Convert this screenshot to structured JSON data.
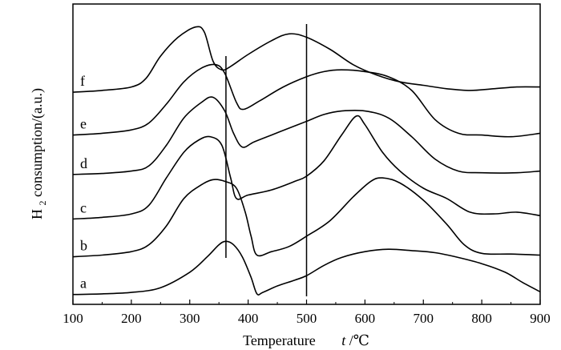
{
  "chart_data": {
    "type": "line",
    "xlabel_text": "Temperature",
    "xlabel_var": "t",
    "xlabel_unit": "/℃",
    "ylabel_main": "H",
    "ylabel_sub": "2",
    "ylabel_rest": " consumption/(a.u.)",
    "xlim": [
      100,
      900
    ],
    "x_ticks": [
      100,
      200,
      300,
      400,
      500,
      600,
      700,
      800,
      900
    ],
    "reference_lines": [
      362,
      500
    ],
    "series": [
      {
        "name": "a",
        "points": [
          [
            100,
            1.0
          ],
          [
            150,
            1.2
          ],
          [
            200,
            1.6
          ],
          [
            250,
            3.0
          ],
          [
            300,
            7.5
          ],
          [
            330,
            12.0
          ],
          [
            350,
            15.5
          ],
          [
            362,
            16.5
          ],
          [
            375,
            15.5
          ],
          [
            390,
            12.0
          ],
          [
            405,
            6.0
          ],
          [
            415,
            1.2
          ],
          [
            425,
            1.6
          ],
          [
            450,
            3.5
          ],
          [
            480,
            5.2
          ],
          [
            500,
            6.5
          ],
          [
            530,
            9.5
          ],
          [
            560,
            11.8
          ],
          [
            600,
            13.5
          ],
          [
            640,
            14.2
          ],
          [
            680,
            13.8
          ],
          [
            720,
            13.2
          ],
          [
            760,
            11.8
          ],
          [
            800,
            10.0
          ],
          [
            840,
            7.5
          ],
          [
            870,
            4.5
          ],
          [
            900,
            1.8
          ]
        ]
      },
      {
        "name": "b",
        "points": [
          [
            100,
            12.0
          ],
          [
            150,
            12.5
          ],
          [
            200,
            13.5
          ],
          [
            230,
            15.5
          ],
          [
            260,
            21.0
          ],
          [
            290,
            29.0
          ],
          [
            320,
            33.0
          ],
          [
            340,
            34.5
          ],
          [
            360,
            34.0
          ],
          [
            380,
            32.0
          ],
          [
            395,
            25.0
          ],
          [
            405,
            18.0
          ],
          [
            415,
            12.5
          ],
          [
            440,
            13.5
          ],
          [
            470,
            15.0
          ],
          [
            500,
            18.0
          ],
          [
            540,
            22.5
          ],
          [
            580,
            29.5
          ],
          [
            610,
            34.0
          ],
          [
            630,
            35.0
          ],
          [
            660,
            33.5
          ],
          [
            700,
            28.5
          ],
          [
            740,
            21.5
          ],
          [
            770,
            15.5
          ],
          [
            800,
            13.0
          ],
          [
            850,
            12.8
          ],
          [
            900,
            12.5
          ]
        ]
      },
      {
        "name": "c",
        "points": [
          [
            100,
            23.0
          ],
          [
            150,
            23.5
          ],
          [
            200,
            24.5
          ],
          [
            230,
            27.0
          ],
          [
            260,
            35.0
          ],
          [
            290,
            42.5
          ],
          [
            315,
            46.0
          ],
          [
            335,
            47.0
          ],
          [
            355,
            44.5
          ],
          [
            370,
            35.0
          ],
          [
            380,
            29.0
          ],
          [
            400,
            30.0
          ],
          [
            440,
            31.5
          ],
          [
            480,
            34.0
          ],
          [
            500,
            35.5
          ],
          [
            530,
            40.0
          ],
          [
            560,
            47.5
          ],
          [
            585,
            53.0
          ],
          [
            600,
            50.5
          ],
          [
            630,
            42.5
          ],
          [
            660,
            37.0
          ],
          [
            700,
            32.0
          ],
          [
            740,
            29.0
          ],
          [
            780,
            25.0
          ],
          [
            820,
            24.5
          ],
          [
            860,
            25.0
          ],
          [
            900,
            24.0
          ]
        ]
      },
      {
        "name": "d",
        "points": [
          [
            100,
            36.0
          ],
          [
            150,
            36.3
          ],
          [
            200,
            37.0
          ],
          [
            230,
            38.5
          ],
          [
            260,
            44.5
          ],
          [
            290,
            52.5
          ],
          [
            320,
            57.0
          ],
          [
            340,
            58.5
          ],
          [
            360,
            54.5
          ],
          [
            375,
            48.0
          ],
          [
            390,
            44.0
          ],
          [
            410,
            45.5
          ],
          [
            440,
            47.5
          ],
          [
            470,
            49.5
          ],
          [
            500,
            51.5
          ],
          [
            530,
            53.5
          ],
          [
            560,
            54.5
          ],
          [
            600,
            54.5
          ],
          [
            640,
            52.5
          ],
          [
            680,
            47.0
          ],
          [
            720,
            40.5
          ],
          [
            760,
            37.0
          ],
          [
            800,
            36.5
          ],
          [
            860,
            36.5
          ],
          [
            900,
            37.0
          ]
        ]
      },
      {
        "name": "e",
        "points": [
          [
            100,
            47.5
          ],
          [
            150,
            48.0
          ],
          [
            200,
            49.0
          ],
          [
            230,
            51.0
          ],
          [
            260,
            56.5
          ],
          [
            290,
            63.0
          ],
          [
            320,
            67.0
          ],
          [
            345,
            68.0
          ],
          [
            360,
            65.5
          ],
          [
            380,
            57.0
          ],
          [
            392,
            55.0
          ],
          [
            420,
            57.5
          ],
          [
            460,
            61.5
          ],
          [
            500,
            64.5
          ],
          [
            530,
            66.0
          ],
          [
            560,
            66.5
          ],
          [
            600,
            66.0
          ],
          [
            640,
            64.5
          ],
          [
            680,
            60.5
          ],
          [
            720,
            52.0
          ],
          [
            760,
            48.0
          ],
          [
            800,
            47.5
          ],
          [
            850,
            47.0
          ],
          [
            900,
            48.0
          ]
        ]
      },
      {
        "name": "f",
        "points": [
          [
            100,
            60.0
          ],
          [
            150,
            60.5
          ],
          [
            200,
            61.5
          ],
          [
            225,
            64.0
          ],
          [
            250,
            70.5
          ],
          [
            280,
            76.0
          ],
          [
            310,
            79.0
          ],
          [
            325,
            77.5
          ],
          [
            340,
            69.0
          ],
          [
            355,
            66.5
          ],
          [
            370,
            67.5
          ],
          [
            400,
            71.0
          ],
          [
            440,
            75.0
          ],
          [
            470,
            77.0
          ],
          [
            500,
            76.0
          ],
          [
            540,
            72.5
          ],
          [
            580,
            68.0
          ],
          [
            620,
            65.0
          ],
          [
            660,
            63.0
          ],
          [
            700,
            62.0
          ],
          [
            740,
            61.0
          ],
          [
            780,
            60.5
          ],
          [
            820,
            61.0
          ],
          [
            860,
            61.5
          ],
          [
            900,
            61.5
          ]
        ]
      }
    ]
  }
}
